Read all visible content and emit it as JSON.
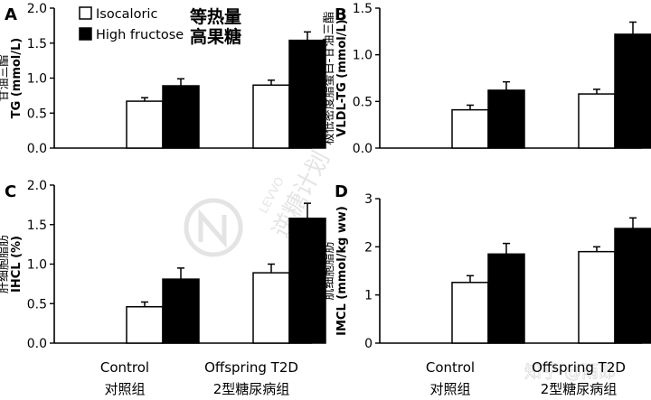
{
  "legend": {
    "items": [
      {
        "label": "Isocaloric",
        "label_cn": "等热量",
        "color": "#ffffff"
      },
      {
        "label": "High fructose",
        "label_cn": "高果糖",
        "color": "#000000"
      }
    ]
  },
  "xaxis": {
    "groups": [
      {
        "label": "Control",
        "label_cn": "对照组"
      },
      {
        "label": "Offspring T2D",
        "label_cn": "2型糖尿病组"
      }
    ]
  },
  "watermark": {
    "brand_cn": "逆糖计划",
    "brand_en": "LEVVO",
    "tm": "TM",
    "source": "知乎 @雨郎"
  },
  "chart_data": [
    {
      "type": "bar",
      "panel": "A",
      "ylabel": "TG (mmol/L)",
      "ylabel_cn": "甘油三酯",
      "ylim": [
        0,
        2.0
      ],
      "yticks": [
        "0.0",
        "0.5",
        "1.0",
        "1.5",
        "2.0"
      ],
      "categories": [
        "Control",
        "Offspring T2D"
      ],
      "series": [
        {
          "name": "Isocaloric",
          "values": [
            0.67,
            0.9
          ],
          "errors": [
            0.05,
            0.07
          ]
        },
        {
          "name": "High fructose",
          "values": [
            0.89,
            1.54
          ],
          "errors": [
            0.1,
            0.12
          ]
        }
      ]
    },
    {
      "type": "bar",
      "panel": "B",
      "ylabel": "VLDL-TG (mmol/L)",
      "ylabel_cn": "极低密度脂蛋白-甘油三酯",
      "ylim": [
        0,
        1.5
      ],
      "yticks": [
        "0.0",
        "0.5",
        "1.0",
        "1.5"
      ],
      "categories": [
        "Control",
        "Offspring T2D"
      ],
      "series": [
        {
          "name": "Isocaloric",
          "values": [
            0.41,
            0.58
          ],
          "errors": [
            0.05,
            0.05
          ]
        },
        {
          "name": "High fructose",
          "values": [
            0.62,
            1.22
          ],
          "errors": [
            0.09,
            0.13
          ]
        }
      ]
    },
    {
      "type": "bar",
      "panel": "C",
      "ylabel": "IHCL (%)",
      "ylabel_cn": "肝细胞脂肪",
      "ylim": [
        0,
        2.0
      ],
      "yticks": [
        "0.0",
        "0.5",
        "1.0",
        "1.5",
        "2.0"
      ],
      "categories": [
        "Control",
        "Offspring T2D"
      ],
      "series": [
        {
          "name": "Isocaloric",
          "values": [
            0.46,
            0.89
          ],
          "errors": [
            0.06,
            0.11
          ]
        },
        {
          "name": "High fructose",
          "values": [
            0.81,
            1.58
          ],
          "errors": [
            0.14,
            0.19
          ]
        }
      ]
    },
    {
      "type": "bar",
      "panel": "D",
      "ylabel": "IMCL (mmol/kg ww)",
      "ylabel_cn": "肌细胞脂肪",
      "ylim": [
        0,
        3
      ],
      "yticks": [
        "0",
        "1",
        "2",
        "3"
      ],
      "categories": [
        "Control",
        "Offspring T2D"
      ],
      "series": [
        {
          "name": "Isocaloric",
          "values": [
            1.26,
            1.9
          ],
          "errors": [
            0.14,
            0.1
          ]
        },
        {
          "name": "High fructose",
          "values": [
            1.85,
            2.38
          ],
          "errors": [
            0.22,
            0.22
          ]
        }
      ]
    }
  ]
}
